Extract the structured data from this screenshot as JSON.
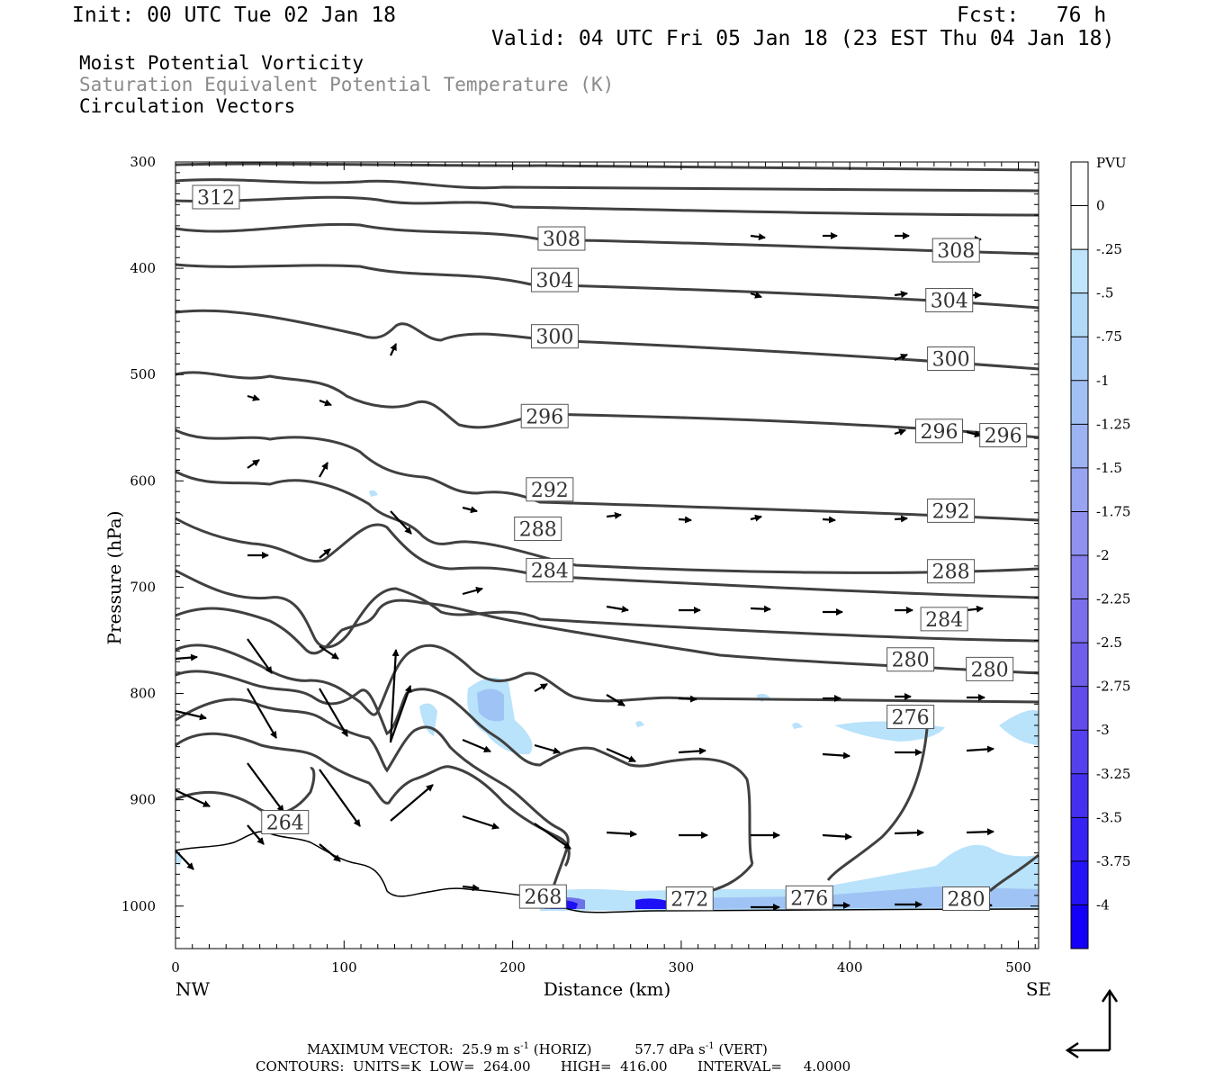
{
  "header": {
    "init": "Init: 00 UTC Tue 02 Jan 18",
    "fcst": "Fcst:   76 h",
    "valid": "Valid: 04 UTC Fri 05 Jan 18 (23 EST Thu 04 Jan 18)"
  },
  "fields": [
    "Moist Potential Vorticity",
    "Saturation Equivalent Potential Temperature (K)",
    "Circulation Vectors"
  ],
  "footer": {
    "max_vector_label": "MAXIMUM VECTOR:",
    "max_horiz": "25.9 m s",
    "max_horiz_unit": "(HORIZ)",
    "max_vert": "57.7 dPa s",
    "max_vert_unit": "(VERT)",
    "exp": "-1",
    "contours": "CONTOURS:  UNITS=K  LOW=  264.00       HIGH=  416.00       INTERVAL=     4.0000"
  },
  "chart_data": {
    "type": "cross-section",
    "xlabel": "Distance (km)",
    "ylabel": "Pressure (hPa)",
    "x_ticks": [
      0,
      100,
      200,
      300,
      400,
      500
    ],
    "y_ticks": [
      300,
      400,
      500,
      600,
      700,
      800,
      900,
      1000
    ],
    "xlim": [
      0,
      512
    ],
    "ylim": [
      1040,
      300
    ],
    "endpoint_left": "NW",
    "endpoint_right": "SE",
    "colorbar": {
      "title": "PVU",
      "labels": [
        "0",
        "-.25",
        "-.5",
        "-.75",
        "-1",
        "-1.25",
        "-1.5",
        "-1.75",
        "-2",
        "-2.25",
        "-2.5",
        "-2.75",
        "-3",
        "-3.25",
        "-3.5",
        "-3.75",
        "-4"
      ],
      "colors": [
        "#ffffff",
        "#ffffff",
        "#bfe4fb",
        "#b2daf8",
        "#a9cdf6",
        "#a3c0f4",
        "#9db2f1",
        "#98a4f0",
        "#9090ee",
        "#8680ec",
        "#7b6feb",
        "#6f5ee9",
        "#624deb",
        "#5540ee",
        "#4530f0",
        "#3522f3",
        "#2413f6",
        "#1400f8"
      ]
    },
    "contour_labels": [
      {
        "text": "312",
        "x": 24,
        "p": 333
      },
      {
        "text": "308",
        "x": 229,
        "p": 372
      },
      {
        "text": "308",
        "x": 463,
        "p": 383
      },
      {
        "text": "304",
        "x": 225,
        "p": 411
      },
      {
        "text": "304",
        "x": 459,
        "p": 430
      },
      {
        "text": "300",
        "x": 225,
        "p": 464
      },
      {
        "text": "300",
        "x": 460,
        "p": 485
      },
      {
        "text": "296",
        "x": 219,
        "p": 539
      },
      {
        "text": "296",
        "x": 453,
        "p": 553
      },
      {
        "text": "296",
        "x": 491,
        "p": 557
      },
      {
        "text": "292",
        "x": 222,
        "p": 608
      },
      {
        "text": "292",
        "x": 460,
        "p": 628
      },
      {
        "text": "288",
        "x": 215,
        "p": 645
      },
      {
        "text": "288",
        "x": 460,
        "p": 685
      },
      {
        "text": "284",
        "x": 222,
        "p": 684
      },
      {
        "text": "284",
        "x": 456,
        "p": 730
      },
      {
        "text": "280",
        "x": 436,
        "p": 768
      },
      {
        "text": "280",
        "x": 483,
        "p": 777
      },
      {
        "text": "276",
        "x": 436,
        "p": 822
      },
      {
        "text": "264",
        "x": 65,
        "p": 921
      },
      {
        "text": "268",
        "x": 218,
        "p": 991
      },
      {
        "text": "272",
        "x": 305,
        "p": 993
      },
      {
        "text": "276",
        "x": 376,
        "p": 992
      },
      {
        "text": "280",
        "x": 469,
        "p": 993
      }
    ],
    "theta_e_sat_levels_K": [
      264,
      268,
      272,
      276,
      280,
      284,
      288,
      292,
      296,
      300,
      304,
      308,
      312
    ]
  }
}
